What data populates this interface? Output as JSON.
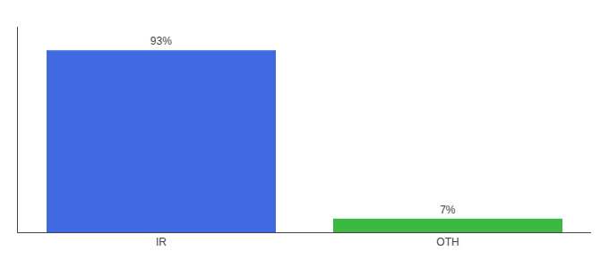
{
  "chart_data": {
    "type": "bar",
    "categories": [
      "IR",
      "OTH"
    ],
    "values": [
      93,
      7
    ],
    "value_labels": [
      "93%",
      "7%"
    ],
    "data_labels": true,
    "colors": [
      "#4169e1",
      "#3cb843"
    ],
    "ylim": [
      0,
      105
    ],
    "grid": false,
    "tick_labels": "x"
  }
}
